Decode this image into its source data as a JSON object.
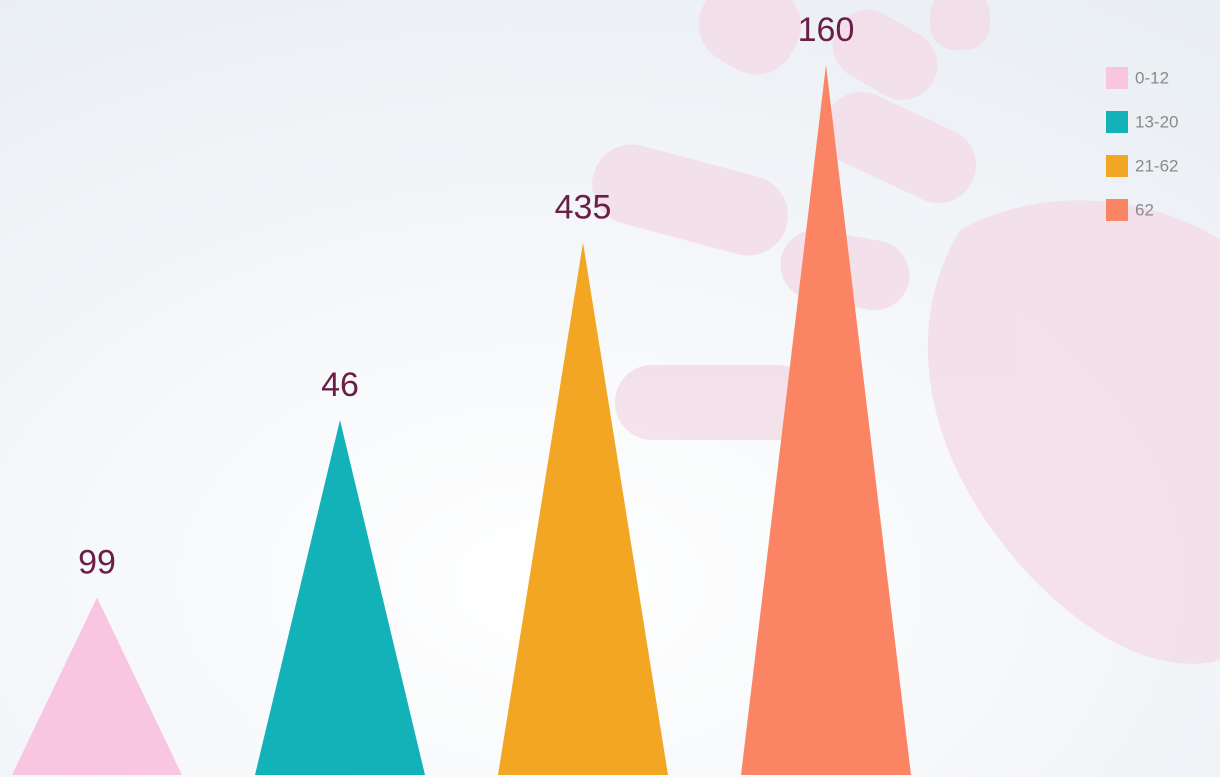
{
  "chart_data": {
    "type": "bar",
    "shape": "triangle",
    "categories": [
      "0-12",
      "13-20",
      "21-62",
      "62"
    ],
    "values": [
      99,
      46,
      435,
      160
    ],
    "colors": [
      "#f9c6e1",
      "#13b2b8",
      "#f2a623",
      "#fb8464"
    ],
    "legend": "top-right"
  }
}
